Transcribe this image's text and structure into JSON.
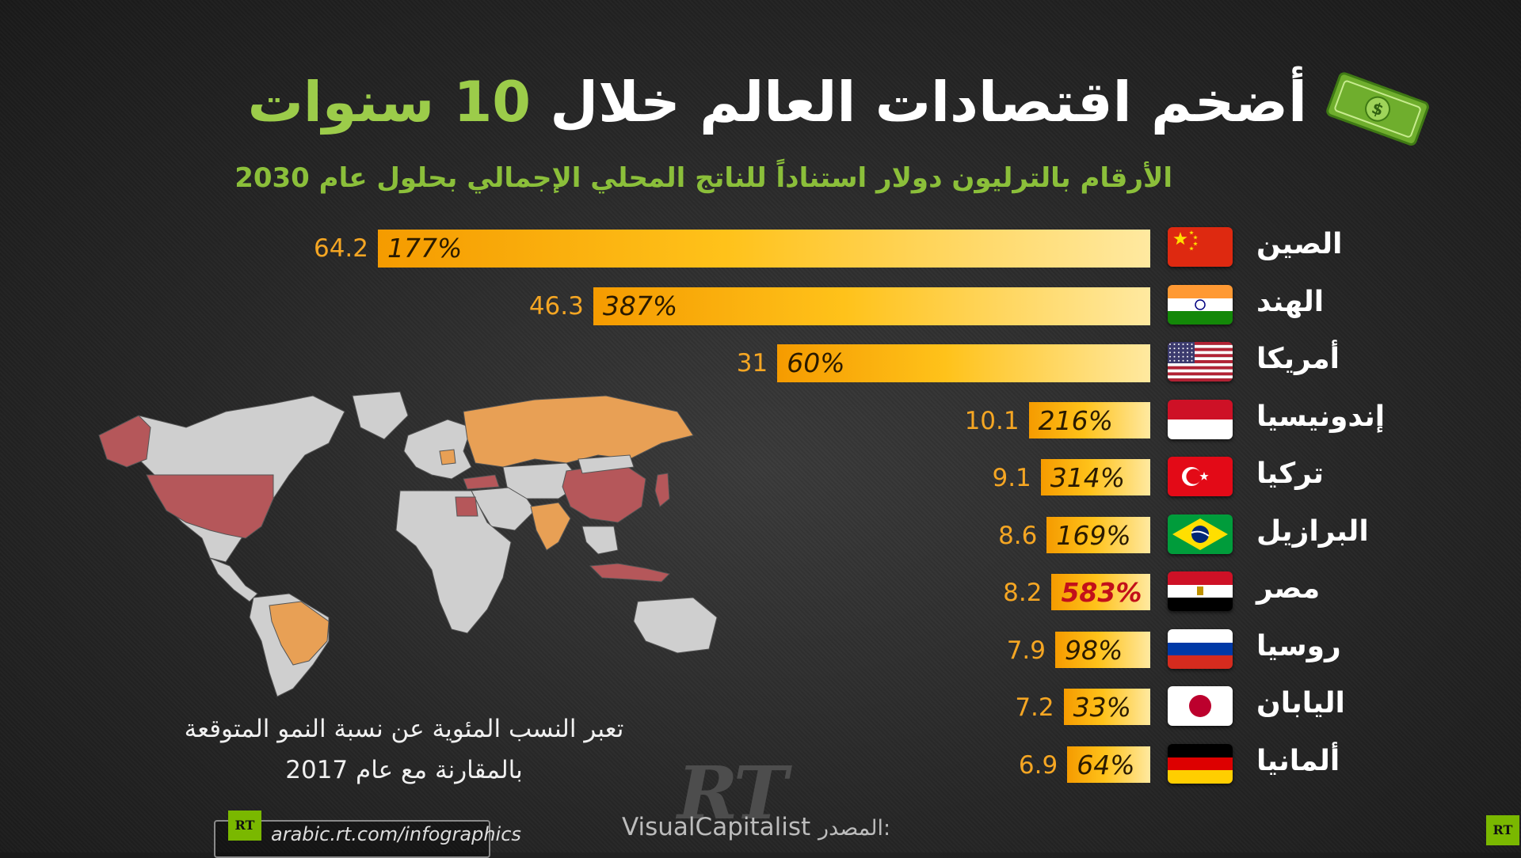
{
  "title": {
    "main": "أضخم اقتصادات العالم خلال",
    "number": "10",
    "word": "سنوات"
  },
  "subtitle": "الأرقام بالترليون دولار استناداً للناتج المحلي الإجمالي بحلول عام 2030",
  "note": {
    "line1": "تعبر النسب المئوية عن نسبة النمو المتوقعة",
    "line2": "بالمقارنة مع عام 2017"
  },
  "logo": "RT",
  "source": {
    "label": "المصدر:",
    "name": "VisualCapitalist"
  },
  "url": "arabic.rt.com/infographics",
  "rt_badge": "RT",
  "colors": {
    "bar_start": "#f59b00",
    "bar_end": "#ffe9a0",
    "value": "#f5a623",
    "accent_green": "#9ccc4a",
    "highlight_red": "#c2101a",
    "map_orange": "#e8a055",
    "map_red": "#b5575a",
    "map_gray": "#cfcfcf"
  },
  "chart_data": {
    "type": "bar",
    "orientation": "horizontal",
    "title": "أضخم اقتصادات العالم خلال 10 سنوات",
    "subtitle": "الأرقام بالترليون دولار استناداً للناتج المحلي الإجمالي بحلول عام 2030",
    "categories": [
      "الصين",
      "الهند",
      "أمريكا",
      "إندونيسيا",
      "تركيا",
      "البرازيل",
      "مصر",
      "روسيا",
      "اليابان",
      "ألمانيا"
    ],
    "series": [
      {
        "values": [
          64.2,
          46.3,
          31,
          10.1,
          9.1,
          8.6,
          8.2,
          7.9,
          7.2,
          6.9
        ]
      }
    ],
    "growth_labels": [
      "177%",
      "387%",
      "60%",
      "216%",
      "314%",
      "169%",
      "583%",
      "98%",
      "33%",
      "64%"
    ],
    "value_labels": [
      "64.2",
      "46.3",
      "31",
      "10.1",
      "9.1",
      "8.6",
      "8.2",
      "7.9",
      "7.2",
      "6.9"
    ],
    "highlight_index": 6,
    "flag_icons": [
      "china-flag-icon",
      "india-flag-icon",
      "usa-flag-icon",
      "indonesia-flag-icon",
      "turkey-flag-icon",
      "brazil-flag-icon",
      "egypt-flag-icon",
      "russia-flag-icon",
      "japan-flag-icon",
      "germany-flag-icon"
    ],
    "xlim": [
      0,
      64.2
    ]
  }
}
